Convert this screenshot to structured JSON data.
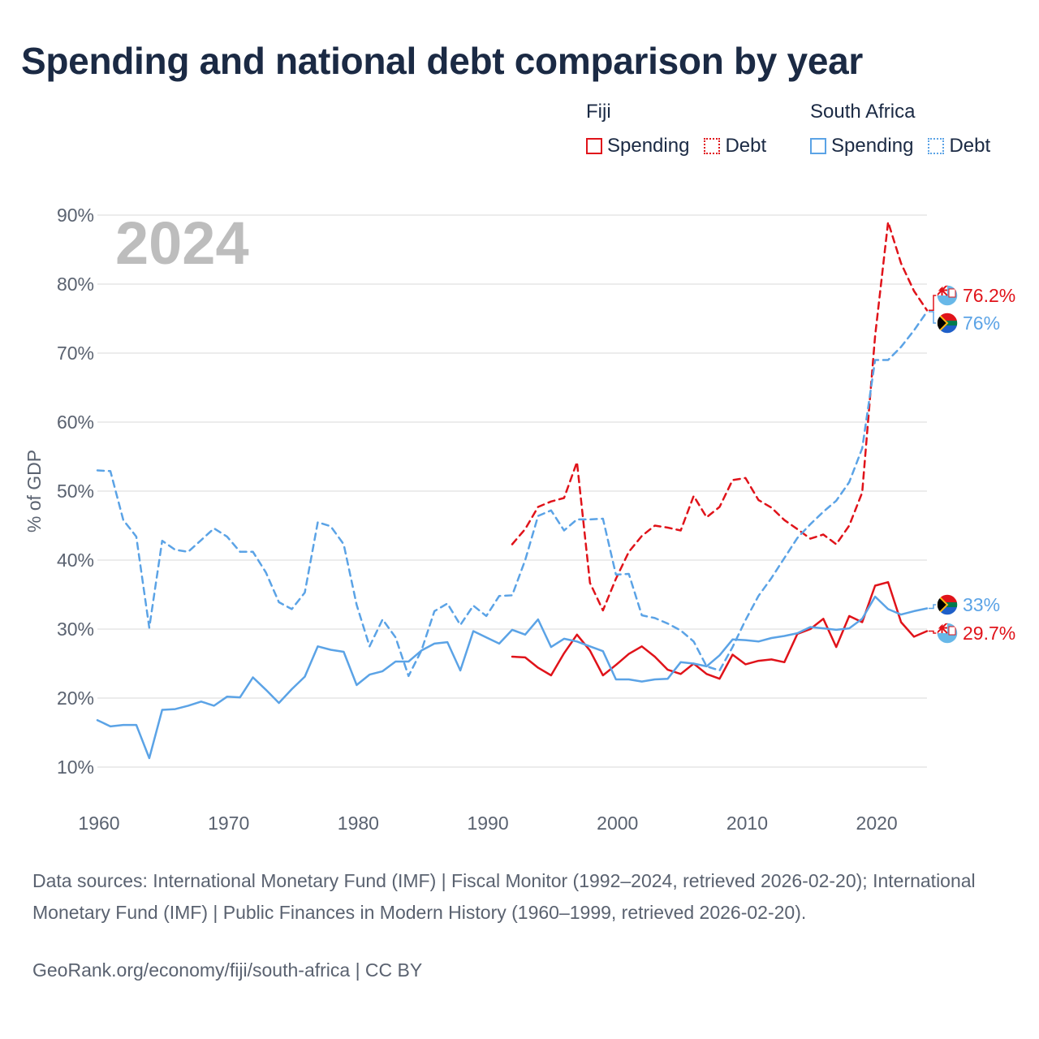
{
  "title": "Spending and national debt comparison by year",
  "legend": {
    "groups": [
      {
        "name": "Fiji",
        "color": "#e0131a",
        "items": [
          {
            "label": "Spending",
            "style": "solid"
          },
          {
            "label": "Debt",
            "style": "dotted"
          }
        ]
      },
      {
        "name": "South Africa",
        "color": "#5ba3e6",
        "items": [
          {
            "label": "Spending",
            "style": "solid"
          },
          {
            "label": "Debt",
            "style": "dotted"
          }
        ]
      }
    ]
  },
  "year_watermark": "2024",
  "chart_data": {
    "type": "line",
    "title": "Spending and national debt comparison by year",
    "xlabel": "",
    "ylabel": "% of GDP",
    "xlim": [
      1960,
      2024
    ],
    "ylim": [
      10,
      90
    ],
    "x_ticks": [
      1960,
      1970,
      1980,
      1990,
      2000,
      2010,
      2020
    ],
    "x_tick_labels": [
      "1960",
      "1970",
      "1980",
      "1990",
      "2000",
      "2010",
      "2020"
    ],
    "y_ticks": [
      10,
      20,
      30,
      40,
      50,
      60,
      70,
      80,
      90
    ],
    "y_tick_labels": [
      "10%",
      "20%",
      "30%",
      "40%",
      "50%",
      "60%",
      "70%",
      "80%",
      "90%"
    ],
    "grid": true,
    "legend_position": "top-right",
    "series": [
      {
        "name": "Fiji Spending",
        "country": "Fiji",
        "metric": "Spending",
        "color": "#e0131a",
        "dash": "solid",
        "end_label": "29.7%",
        "x": [
          1992,
          1993,
          1994,
          1995,
          1996,
          1997,
          1998,
          1999,
          2000,
          2001,
          2002,
          2003,
          2004,
          2005,
          2006,
          2007,
          2008,
          2009,
          2010,
          2011,
          2012,
          2013,
          2014,
          2015,
          2016,
          2017,
          2018,
          2019,
          2020,
          2021,
          2022,
          2023,
          2024
        ],
        "y": [
          26.0,
          25.9,
          24.4,
          23.3,
          26.5,
          29.2,
          26.9,
          23.3,
          24.8,
          26.4,
          27.5,
          26.0,
          24.1,
          23.5,
          25.0,
          23.5,
          22.8,
          26.3,
          24.9,
          25.4,
          25.6,
          25.2,
          29.3,
          30.0,
          31.5,
          27.4,
          31.9,
          31.0,
          36.3,
          36.8,
          31.0,
          28.9,
          29.7
        ]
      },
      {
        "name": "Fiji Debt",
        "country": "Fiji",
        "metric": "Debt",
        "color": "#e0131a",
        "dash": "dashed",
        "end_label": "76.2%",
        "x": [
          1992,
          1993,
          1994,
          1995,
          1996,
          1997,
          1998,
          1999,
          2000,
          2001,
          2002,
          2003,
          2004,
          2005,
          2006,
          2007,
          2008,
          2009,
          2010,
          2011,
          2012,
          2013,
          2014,
          2015,
          2016,
          2017,
          2018,
          2019,
          2020,
          2021,
          2022,
          2023,
          2024
        ],
        "y": [
          42.3,
          44.5,
          47.7,
          48.5,
          49.0,
          54.2,
          36.7,
          32.7,
          37.3,
          41.2,
          43.5,
          45.0,
          44.7,
          44.3,
          49.3,
          46.2,
          47.7,
          51.6,
          51.9,
          48.7,
          47.6,
          45.8,
          44.5,
          43.1,
          43.7,
          42.3,
          45.0,
          49.8,
          72.5,
          89.0,
          83.0,
          79.0,
          76.2
        ]
      },
      {
        "name": "South Africa Spending",
        "country": "South Africa",
        "metric": "Spending",
        "color": "#5ba3e6",
        "dash": "solid",
        "end_label": "33%",
        "x": [
          1960,
          1961,
          1962,
          1963,
          1964,
          1965,
          1966,
          1967,
          1968,
          1969,
          1970,
          1971,
          1972,
          1973,
          1974,
          1975,
          1976,
          1977,
          1978,
          1979,
          1980,
          1981,
          1982,
          1983,
          1984,
          1985,
          1986,
          1987,
          1988,
          1989,
          1990,
          1991,
          1992,
          1993,
          1994,
          1995,
          1996,
          1997,
          1998,
          1999,
          2000,
          2001,
          2002,
          2003,
          2004,
          2005,
          2006,
          2007,
          2008,
          2009,
          2010,
          2011,
          2012,
          2013,
          2014,
          2015,
          2016,
          2017,
          2018,
          2019,
          2020,
          2021,
          2022,
          2023,
          2024
        ],
        "y": [
          16.8,
          15.9,
          16.1,
          16.1,
          11.3,
          18.3,
          18.4,
          18.9,
          19.5,
          18.9,
          20.2,
          20.1,
          23.0,
          21.2,
          19.3,
          21.3,
          23.1,
          27.5,
          27.0,
          26.7,
          21.9,
          23.4,
          23.9,
          25.3,
          25.3,
          26.9,
          27.9,
          28.1,
          24.0,
          29.7,
          28.8,
          27.9,
          29.9,
          29.2,
          31.4,
          27.4,
          28.6,
          28.2,
          27.5,
          26.8,
          22.7,
          22.7,
          22.4,
          22.7,
          22.8,
          25.2,
          25.0,
          24.6,
          26.2,
          28.5,
          28.4,
          28.2,
          28.7,
          29.0,
          29.4,
          30.3,
          30.1,
          29.9,
          30.1,
          31.5,
          34.7,
          32.9,
          32.1,
          32.6,
          33.0
        ]
      },
      {
        "name": "South Africa Debt",
        "country": "South Africa",
        "metric": "Debt",
        "color": "#5ba3e6",
        "dash": "dashed",
        "end_label": "76%",
        "x": [
          1960,
          1961,
          1962,
          1963,
          1964,
          1965,
          1966,
          1967,
          1968,
          1969,
          1970,
          1971,
          1972,
          1973,
          1974,
          1975,
          1976,
          1977,
          1978,
          1979,
          1980,
          1981,
          1982,
          1983,
          1984,
          1985,
          1986,
          1987,
          1988,
          1989,
          1990,
          1991,
          1992,
          1993,
          1994,
          1995,
          1996,
          1997,
          1998,
          1999,
          2000,
          2001,
          2002,
          2003,
          2004,
          2005,
          2006,
          2007,
          2008,
          2009,
          2010,
          2011,
          2012,
          2013,
          2014,
          2015,
          2016,
          2017,
          2018,
          2019,
          2020,
          2021,
          2022,
          2023,
          2024
        ],
        "y": [
          53.0,
          52.9,
          45.8,
          43.4,
          30.2,
          42.8,
          41.5,
          41.2,
          42.9,
          44.6,
          43.4,
          41.2,
          41.2,
          38.2,
          33.9,
          32.9,
          35.3,
          45.5,
          44.9,
          42.3,
          33.5,
          27.5,
          31.4,
          28.8,
          23.2,
          26.9,
          32.6,
          33.7,
          30.6,
          33.4,
          31.9,
          34.8,
          34.9,
          40.0,
          46.4,
          47.2,
          44.3,
          45.9,
          45.9,
          46.0,
          37.9,
          38.0,
          32.0,
          31.6,
          30.8,
          29.8,
          28.2,
          24.6,
          24.0,
          27.4,
          31.3,
          34.8,
          37.4,
          40.3,
          43.2,
          45.2,
          47.0,
          48.6,
          51.3,
          56.2,
          69.0,
          69.0,
          70.9,
          73.3,
          76.0
        ]
      }
    ]
  },
  "sources": "Data sources: International Monetary Fund (IMF) | Fiscal Monitor (1992–2024, retrieved 2026-02-20); International Monetary Fund (IMF) | Public Finances in Modern History (1960–1999, retrieved 2026-02-20).",
  "credit": "GeoRank.org/economy/fiji/south-africa | CC BY"
}
